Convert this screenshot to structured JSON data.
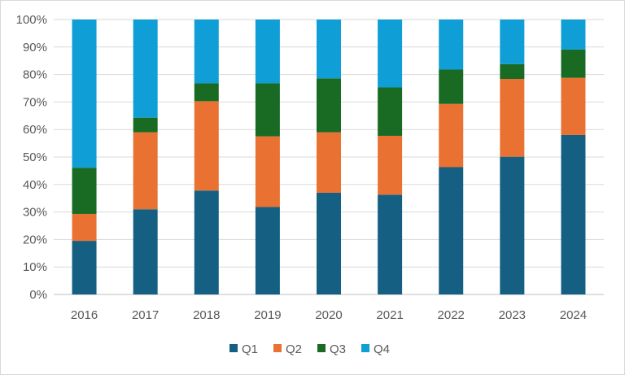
{
  "chart_data": {
    "type": "bar",
    "stacked": "percent",
    "title": "",
    "xlabel": "",
    "ylabel": "",
    "ylim": [
      0,
      100
    ],
    "y_ticks": [
      "0%",
      "10%",
      "20%",
      "30%",
      "40%",
      "50%",
      "60%",
      "70%",
      "80%",
      "90%",
      "100%"
    ],
    "grid": true,
    "legend_position": "bottom",
    "categories": [
      "2016",
      "2017",
      "2018",
      "2019",
      "2020",
      "2021",
      "2022",
      "2023",
      "2024"
    ],
    "series": [
      {
        "name": "Q1",
        "color": "#156082",
        "values": [
          19.5,
          31,
          37.8,
          31.8,
          37,
          36.3,
          46.3,
          50.1,
          58
        ]
      },
      {
        "name": "Q2",
        "color": "#e97132",
        "values": [
          9.8,
          28,
          32.5,
          25.7,
          22,
          21.4,
          23,
          28.3,
          20.8
        ]
      },
      {
        "name": "Q3",
        "color": "#196b24",
        "values": [
          16.8,
          5.3,
          6.5,
          19.3,
          19.6,
          17.6,
          12.5,
          5.4,
          10.3
        ]
      },
      {
        "name": "Q4",
        "color": "#0f9ed5",
        "values": [
          53.9,
          35.7,
          23.2,
          23.2,
          21.4,
          24.7,
          18.2,
          16.2,
          10.9
        ]
      }
    ]
  }
}
